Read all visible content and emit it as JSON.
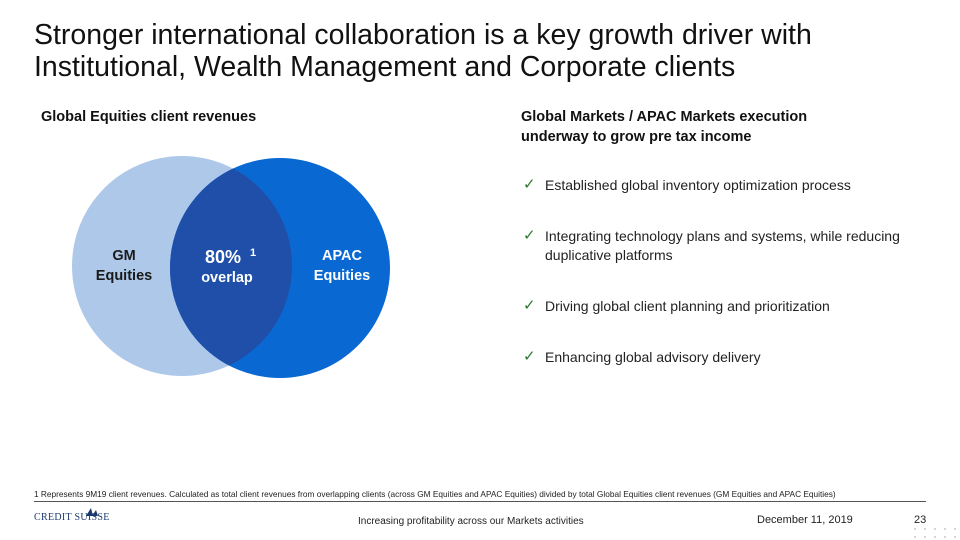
{
  "title": {
    "line1": "Stronger international collaboration is a key growth driver with",
    "line2": "Institutional, Wealth Management and Corporate clients"
  },
  "left": {
    "heading": "Global Equities client revenues",
    "venn": {
      "left_label_1": "GM",
      "left_label_2": "Equities",
      "right_label_1": "APAC",
      "right_label_2": "Equities",
      "overlap_value": "80%",
      "overlap_footnote": "1",
      "overlap_label": "overlap",
      "colors": {
        "left": "#aec8ea",
        "right": "#0a68d2",
        "overlap": "#1f4fa8",
        "left_text": "#1a1a1a",
        "white_text": "#ffffff"
      }
    }
  },
  "right": {
    "heading": "Global Markets / APAC Markets execution underway to grow pre tax income",
    "items": [
      {
        "text": "Established global inventory optimization process"
      },
      {
        "text": "Integrating technology plans and systems, while reducing duplicative platforms"
      },
      {
        "text": "Driving global client planning and prioritization"
      },
      {
        "text": "Enhancing global advisory delivery"
      }
    ],
    "check_icon": "check-icon"
  },
  "footnote": "1 Represents 9M19 client revenues. Calculated as total client revenues from overlapping clients (across GM Equities and APAC Equities) divided by total Global Equities client revenues (GM Equities and APAC Equities)",
  "footer": {
    "logo_text": "CREDIT SUISSE",
    "center_text": "Increasing profitability across our Markets activities",
    "date": "December 11, 2019",
    "page_number": "23"
  }
}
